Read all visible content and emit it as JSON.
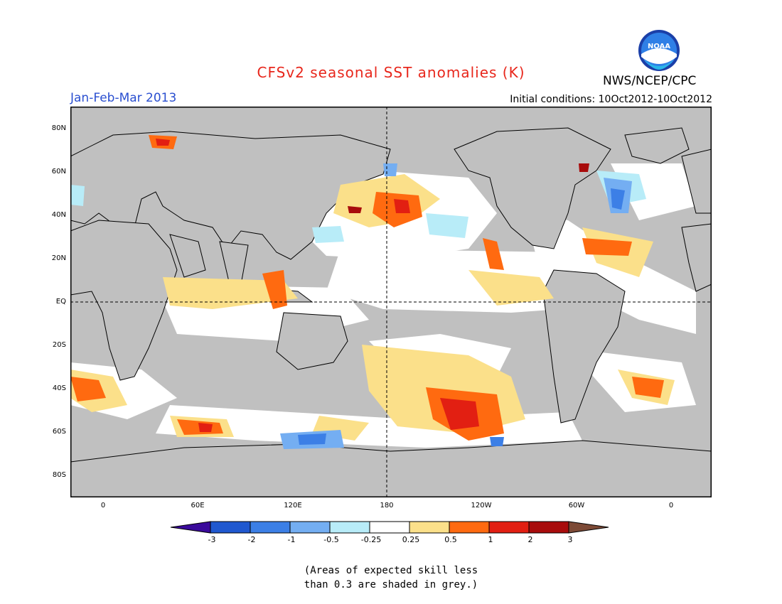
{
  "header": {
    "title": "CFSv2 seasonal SST anomalies (K)",
    "season": "Jan-Feb-Mar 2013",
    "initial_conditions": "Initial conditions: 10Oct2012-10Oct2012",
    "agency": "NWS/NCEP/CPC",
    "logo_text": "NOAA"
  },
  "map": {
    "lat_labels": [
      "80N",
      "60N",
      "40N",
      "20N",
      "EQ",
      "20S",
      "40S",
      "60S",
      "80S"
    ],
    "lon_labels": [
      "0",
      "60E",
      "120E",
      "180",
      "120W",
      "60W",
      "0"
    ],
    "colors": {
      "land": "#c0c0c0",
      "ocean_neutral": "#ffffff",
      "low_skill": "#c0c0c0"
    }
  },
  "colorbar": {
    "ticks": [
      "-3",
      "-2",
      "-1",
      "-0.5",
      "-0.25",
      "0.25",
      "0.5",
      "1",
      "2",
      "3"
    ],
    "colors": [
      "#3a0a9b",
      "#2058cf",
      "#3c7fe6",
      "#74aef2",
      "#b8ecf8",
      "#ffffff",
      "#fbe08a",
      "#ff6a10",
      "#e21f12",
      "#a80c0c",
      "#7d4a36"
    ]
  },
  "note": {
    "line1": "(Areas of expected skill less",
    "line2": "than 0.3 are shaded in grey.)"
  }
}
